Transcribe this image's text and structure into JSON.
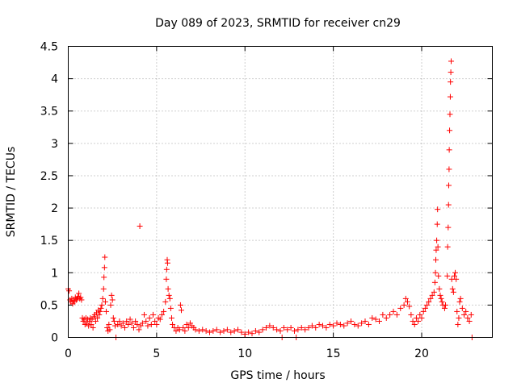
{
  "chart_data": {
    "type": "scatter",
    "title": "Day 089 of 2023, SRMTID for receiver cn29",
    "xlabel": "GPS time / hours",
    "ylabel": "SRMTID / TECUs",
    "xlim": [
      0,
      24
    ],
    "ylim": [
      0,
      4.5
    ],
    "xticks": [
      0,
      5,
      10,
      15,
      20
    ],
    "xtick_labels": [
      "0",
      "5",
      "10",
      "15",
      "20"
    ],
    "yticks": [
      0,
      0.5,
      1,
      1.5,
      2,
      2.5,
      3,
      3.5,
      4,
      4.5
    ],
    "ytick_labels": [
      "0",
      "0.5",
      "1",
      "1.5",
      "2",
      "2.5",
      "3",
      "3.5",
      "4",
      "4.5"
    ],
    "grid": true,
    "marker": "plus",
    "color": "#ff0000",
    "series": [
      {
        "name": "SRMTID",
        "points": [
          [
            0.0,
            0.75
          ],
          [
            0.05,
            0.72
          ],
          [
            0.1,
            0.58
          ],
          [
            0.15,
            0.55
          ],
          [
            0.2,
            0.6
          ],
          [
            0.25,
            0.52
          ],
          [
            0.3,
            0.57
          ],
          [
            0.35,
            0.55
          ],
          [
            0.4,
            0.62
          ],
          [
            0.45,
            0.58
          ],
          [
            0.5,
            0.6
          ],
          [
            0.55,
            0.63
          ],
          [
            0.6,
            0.68
          ],
          [
            0.65,
            0.6
          ],
          [
            0.7,
            0.62
          ],
          [
            0.75,
            0.58
          ],
          [
            0.8,
            0.3
          ],
          [
            0.85,
            0.25
          ],
          [
            0.9,
            0.28
          ],
          [
            0.95,
            0.2
          ],
          [
            1.0,
            0.3
          ],
          [
            1.05,
            0.22
          ],
          [
            1.1,
            0.28
          ],
          [
            1.15,
            0.18
          ],
          [
            1.2,
            0.25
          ],
          [
            1.25,
            0.3
          ],
          [
            1.3,
            0.2
          ],
          [
            1.35,
            0.28
          ],
          [
            1.4,
            0.15
          ],
          [
            1.45,
            0.32
          ],
          [
            1.5,
            0.35
          ],
          [
            1.55,
            0.25
          ],
          [
            1.6,
            0.38
          ],
          [
            1.65,
            0.3
          ],
          [
            1.7,
            0.42
          ],
          [
            1.75,
            0.35
          ],
          [
            1.8,
            0.4
          ],
          [
            1.85,
            0.45
          ],
          [
            1.9,
            0.5
          ],
          [
            1.95,
            0.6
          ],
          [
            2.0,
            0.75
          ],
          [
            2.02,
            0.93
          ],
          [
            2.05,
            1.08
          ],
          [
            2.07,
            1.24
          ],
          [
            2.1,
            0.55
          ],
          [
            2.15,
            0.4
          ],
          [
            2.2,
            0.15
          ],
          [
            2.25,
            0.1
          ],
          [
            2.3,
            0.2
          ],
          [
            2.35,
            0.12
          ],
          [
            2.4,
            0.5
          ],
          [
            2.45,
            0.65
          ],
          [
            2.5,
            0.58
          ],
          [
            2.55,
            0.3
          ],
          [
            2.6,
            0.25
          ],
          [
            2.65,
            0.18
          ],
          [
            2.7,
            0.0
          ],
          [
            2.8,
            0.2
          ],
          [
            2.9,
            0.25
          ],
          [
            3.0,
            0.18
          ],
          [
            3.1,
            0.22
          ],
          [
            3.2,
            0.15
          ],
          [
            3.3,
            0.25
          ],
          [
            3.4,
            0.2
          ],
          [
            3.5,
            0.28
          ],
          [
            3.6,
            0.22
          ],
          [
            3.7,
            0.15
          ],
          [
            3.8,
            0.25
          ],
          [
            3.9,
            0.2
          ],
          [
            4.0,
            0.12
          ],
          [
            4.05,
            1.72
          ],
          [
            4.1,
            0.18
          ],
          [
            4.2,
            0.22
          ],
          [
            4.3,
            0.35
          ],
          [
            4.4,
            0.25
          ],
          [
            4.5,
            0.18
          ],
          [
            4.6,
            0.3
          ],
          [
            4.7,
            0.2
          ],
          [
            4.8,
            0.35
          ],
          [
            4.9,
            0.25
          ],
          [
            5.0,
            0.2
          ],
          [
            5.1,
            0.3
          ],
          [
            5.2,
            0.28
          ],
          [
            5.3,
            0.35
          ],
          [
            5.4,
            0.4
          ],
          [
            5.5,
            0.55
          ],
          [
            5.55,
            0.9
          ],
          [
            5.57,
            1.05
          ],
          [
            5.6,
            1.2
          ],
          [
            5.62,
            1.15
          ],
          [
            5.65,
            0.75
          ],
          [
            5.7,
            0.65
          ],
          [
            5.75,
            0.6
          ],
          [
            5.8,
            0.45
          ],
          [
            5.85,
            0.3
          ],
          [
            5.9,
            0.2
          ],
          [
            6.0,
            0.15
          ],
          [
            6.1,
            0.1
          ],
          [
            6.2,
            0.15
          ],
          [
            6.3,
            0.12
          ],
          [
            6.35,
            0.5
          ],
          [
            6.4,
            0.42
          ],
          [
            6.5,
            0.15
          ],
          [
            6.6,
            0.1
          ],
          [
            6.7,
            0.2
          ],
          [
            6.8,
            0.15
          ],
          [
            6.9,
            0.22
          ],
          [
            7.0,
            0.18
          ],
          [
            7.1,
            0.15
          ],
          [
            7.2,
            0.12
          ],
          [
            7.4,
            0.1
          ],
          [
            7.6,
            0.12
          ],
          [
            7.8,
            0.1
          ],
          [
            8.0,
            0.08
          ],
          [
            8.2,
            0.1
          ],
          [
            8.4,
            0.12
          ],
          [
            8.6,
            0.08
          ],
          [
            8.8,
            0.1
          ],
          [
            9.0,
            0.12
          ],
          [
            9.2,
            0.08
          ],
          [
            9.4,
            0.1
          ],
          [
            9.6,
            0.12
          ],
          [
            9.8,
            0.08
          ],
          [
            10.0,
            0.05
          ],
          [
            10.2,
            0.08
          ],
          [
            10.4,
            0.06
          ],
          [
            10.6,
            0.1
          ],
          [
            10.8,
            0.08
          ],
          [
            11.0,
            0.12
          ],
          [
            11.2,
            0.15
          ],
          [
            11.4,
            0.18
          ],
          [
            11.6,
            0.15
          ],
          [
            11.8,
            0.12
          ],
          [
            12.0,
            0.1
          ],
          [
            12.1,
            0.0
          ],
          [
            12.2,
            0.15
          ],
          [
            12.4,
            0.12
          ],
          [
            12.6,
            0.15
          ],
          [
            12.8,
            0.1
          ],
          [
            12.9,
            0.0
          ],
          [
            13.0,
            0.12
          ],
          [
            13.2,
            0.15
          ],
          [
            13.4,
            0.12
          ],
          [
            13.6,
            0.15
          ],
          [
            13.8,
            0.18
          ],
          [
            14.0,
            0.15
          ],
          [
            14.2,
            0.2
          ],
          [
            14.4,
            0.18
          ],
          [
            14.6,
            0.15
          ],
          [
            14.8,
            0.2
          ],
          [
            15.0,
            0.18
          ],
          [
            15.2,
            0.22
          ],
          [
            15.4,
            0.2
          ],
          [
            15.6,
            0.18
          ],
          [
            15.8,
            0.22
          ],
          [
            16.0,
            0.25
          ],
          [
            16.2,
            0.2
          ],
          [
            16.4,
            0.18
          ],
          [
            16.6,
            0.22
          ],
          [
            16.8,
            0.25
          ],
          [
            17.0,
            0.2
          ],
          [
            17.2,
            0.3
          ],
          [
            17.4,
            0.28
          ],
          [
            17.6,
            0.25
          ],
          [
            17.8,
            0.35
          ],
          [
            18.0,
            0.3
          ],
          [
            18.2,
            0.35
          ],
          [
            18.4,
            0.4
          ],
          [
            18.6,
            0.35
          ],
          [
            18.8,
            0.45
          ],
          [
            19.0,
            0.5
          ],
          [
            19.1,
            0.6
          ],
          [
            19.2,
            0.55
          ],
          [
            19.3,
            0.48
          ],
          [
            19.4,
            0.35
          ],
          [
            19.5,
            0.25
          ],
          [
            19.6,
            0.2
          ],
          [
            19.7,
            0.3
          ],
          [
            19.8,
            0.25
          ],
          [
            19.9,
            0.35
          ],
          [
            20.0,
            0.3
          ],
          [
            20.1,
            0.4
          ],
          [
            20.2,
            0.45
          ],
          [
            20.3,
            0.5
          ],
          [
            20.4,
            0.55
          ],
          [
            20.5,
            0.6
          ],
          [
            20.6,
            0.65
          ],
          [
            20.7,
            0.7
          ],
          [
            20.75,
            0.85
          ],
          [
            20.78,
            1.0
          ],
          [
            20.8,
            1.2
          ],
          [
            20.82,
            1.35
          ],
          [
            20.85,
            1.5
          ],
          [
            20.88,
            1.75
          ],
          [
            20.9,
            1.98
          ],
          [
            20.92,
            1.4
          ],
          [
            20.95,
            0.95
          ],
          [
            21.0,
            0.75
          ],
          [
            21.05,
            0.65
          ],
          [
            21.1,
            0.6
          ],
          [
            21.15,
            0.55
          ],
          [
            21.2,
            0.5
          ],
          [
            21.3,
            0.45
          ],
          [
            21.35,
            0.5
          ],
          [
            21.45,
            0.95
          ],
          [
            21.47,
            1.4
          ],
          [
            21.5,
            1.7
          ],
          [
            21.52,
            2.05
          ],
          [
            21.53,
            2.35
          ],
          [
            21.55,
            2.6
          ],
          [
            21.56,
            2.9
          ],
          [
            21.58,
            3.2
          ],
          [
            21.6,
            3.45
          ],
          [
            21.62,
            3.72
          ],
          [
            21.63,
            3.95
          ],
          [
            21.65,
            4.1
          ],
          [
            21.67,
            4.27
          ],
          [
            21.7,
            0.9
          ],
          [
            21.75,
            0.75
          ],
          [
            21.8,
            0.7
          ],
          [
            21.85,
            0.95
          ],
          [
            21.9,
            1.0
          ],
          [
            21.95,
            0.9
          ],
          [
            22.0,
            0.4
          ],
          [
            22.05,
            0.2
          ],
          [
            22.1,
            0.3
          ],
          [
            22.15,
            0.55
          ],
          [
            22.2,
            0.6
          ],
          [
            22.3,
            0.45
          ],
          [
            22.4,
            0.35
          ],
          [
            22.5,
            0.4
          ],
          [
            22.6,
            0.3
          ],
          [
            22.7,
            0.25
          ],
          [
            22.8,
            0.35
          ],
          [
            22.85,
            0.0
          ]
        ]
      }
    ]
  }
}
